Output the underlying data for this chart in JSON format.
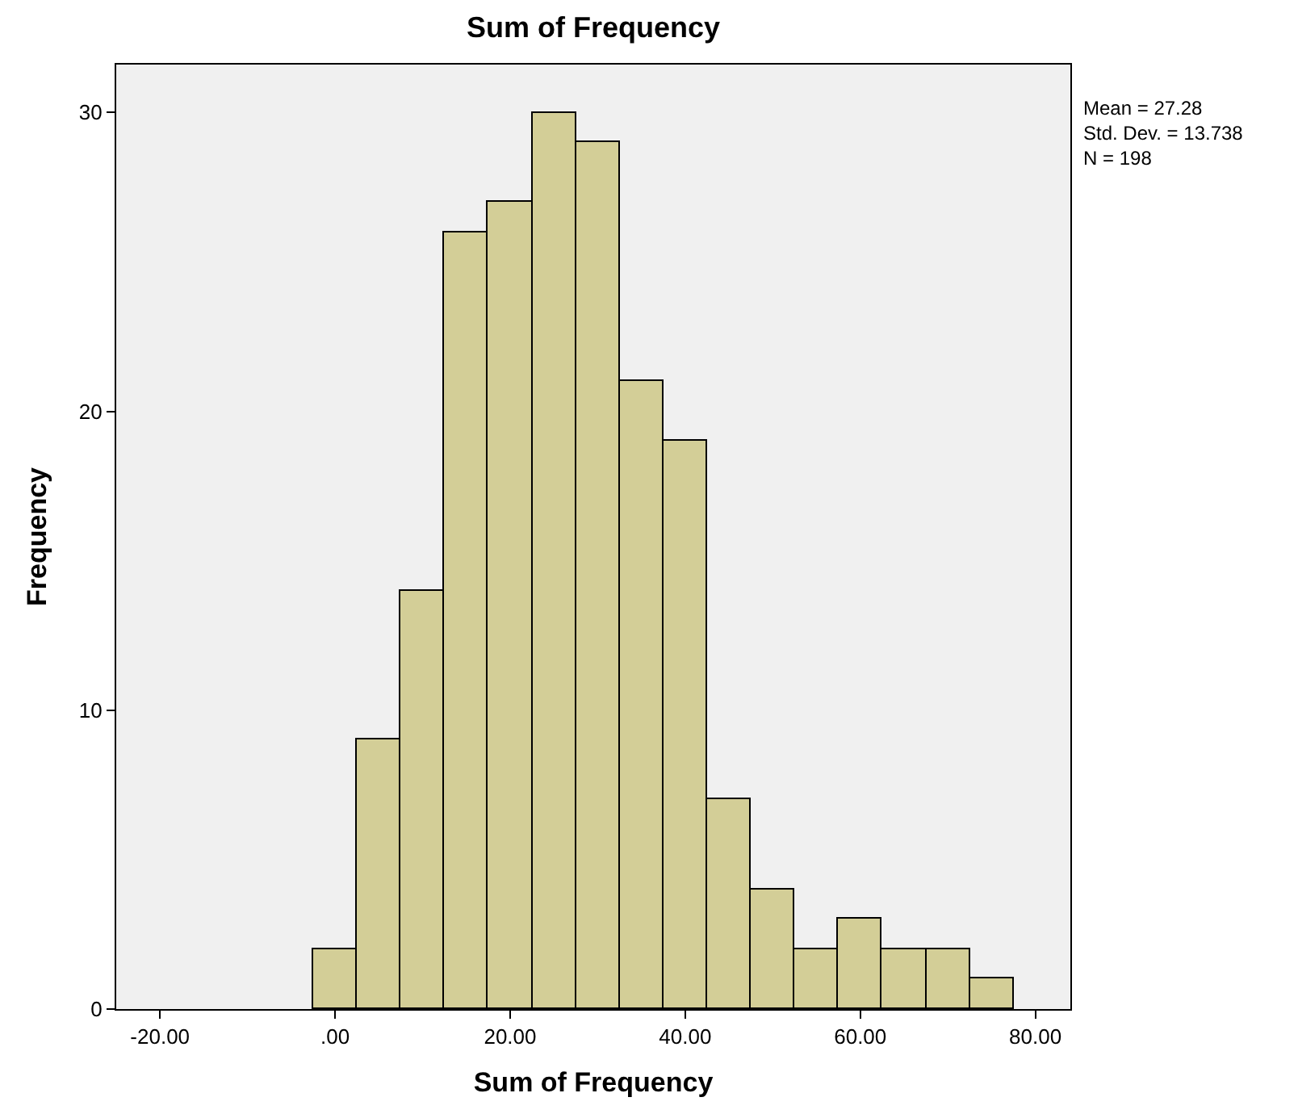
{
  "chart_data": {
    "type": "histogram",
    "title": "Sum of Frequency",
    "xlabel": "Sum of Frequency",
    "ylabel": "Frequency",
    "bins": [
      -2.5,
      2.5,
      7.5,
      12.5,
      17.5,
      22.5,
      27.5,
      32.5,
      37.5,
      42.5,
      47.5,
      52.5,
      57.5,
      62.5,
      67.5,
      72.5,
      77.5
    ],
    "values": [
      2,
      9,
      14,
      26,
      27,
      30,
      29,
      21,
      19,
      7,
      4,
      2,
      3,
      2,
      2,
      1
    ],
    "color": "#d3ce97",
    "xlim": [
      -25,
      84
    ],
    "xticks": [
      {
        "value": -20,
        "label": "-20.00"
      },
      {
        "value": 0,
        "label": ".00"
      },
      {
        "value": 20,
        "label": "20.00"
      },
      {
        "value": 40,
        "label": "40.00"
      },
      {
        "value": 60,
        "label": "60.00"
      },
      {
        "value": 80,
        "label": "80.00"
      }
    ],
    "ylim": [
      0,
      31.6
    ],
    "yticks": [
      0,
      10,
      20,
      30
    ],
    "grid": false,
    "legend": false,
    "annotations": [
      "Mean = 27.28",
      "Std. Dev. = 13.738",
      "N = 198"
    ]
  }
}
